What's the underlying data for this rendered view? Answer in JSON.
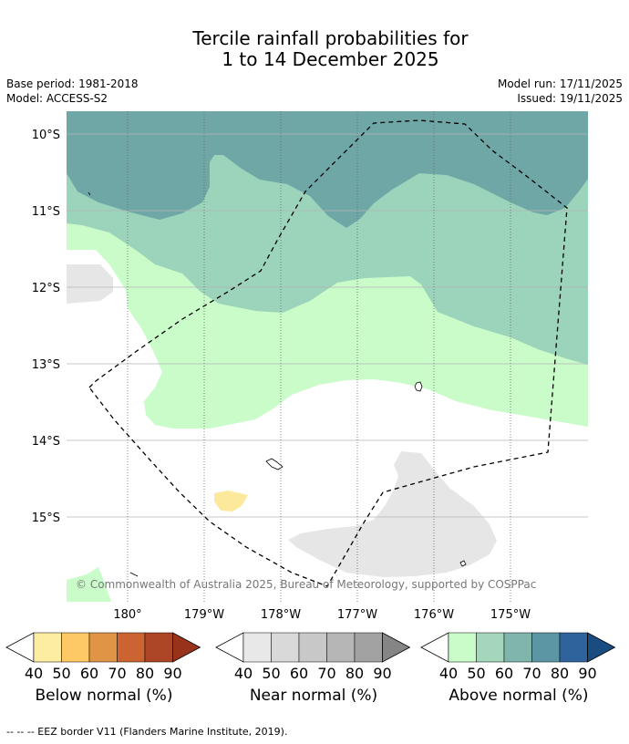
{
  "title": {
    "line1": "Tercile rainfall probabilities for",
    "line2": "1 to 14 December 2025"
  },
  "meta": {
    "base_period": "Base period: 1981-2018",
    "model": "Model: ACCESS-S2",
    "model_run": "Model run: 17/11/2025",
    "issued": "Issued: 19/11/2025"
  },
  "map": {
    "lat_labels": [
      "10°S",
      "11°S",
      "12°S",
      "13°S",
      "14°S",
      "15°S"
    ],
    "lon_labels": [
      "180°",
      "179°W",
      "178°W",
      "177°W",
      "176°W",
      "175°W"
    ],
    "copyright": "© Commonwealth of Australia 2025, Bureau of Meteorology, supported by COSPPac",
    "colors": {
      "above_40": "#c9fcc9",
      "above_50": "#9bd3bb",
      "above_60": "#6fa7a7",
      "near_40": "#e6e6e6",
      "below_40": "#fce99b",
      "land": "#ffffff"
    }
  },
  "legends": [
    {
      "name": "Below normal (%)",
      "ticks": [
        "40",
        "50",
        "60",
        "70",
        "80",
        "90"
      ],
      "colors": [
        "#fdeda0",
        "#fcc965",
        "#e09445",
        "#cc6431",
        "#ad4626",
        "#99321a"
      ]
    },
    {
      "name": "Near normal (%)",
      "ticks": [
        "40",
        "50",
        "60",
        "70",
        "80",
        "90"
      ],
      "colors": [
        "#e8e8e8",
        "#d9d9d9",
        "#c8c8c8",
        "#b6b6b6",
        "#a2a2a2",
        "#858585"
      ]
    },
    {
      "name": "Above normal (%)",
      "ticks": [
        "40",
        "50",
        "60",
        "70",
        "80",
        "90"
      ],
      "colors": [
        "#c9fcc9",
        "#a3d6bb",
        "#80b5ac",
        "#5c95a3",
        "#2f639b",
        "#194c80"
      ]
    }
  ],
  "footnote": "--  --  -- EEZ border V11 (Flanders Marine Institute, 2019)."
}
